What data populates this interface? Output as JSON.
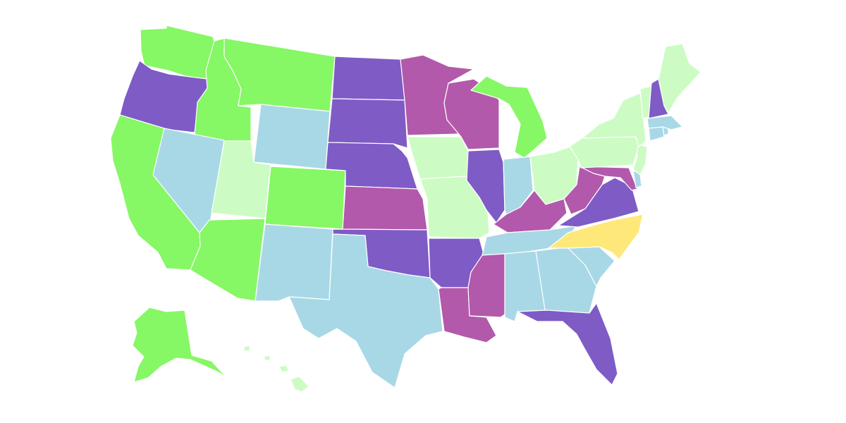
{
  "map": {
    "category_colors": {
      "bright_green": "#86f765",
      "light_green": "#ccfcc4",
      "light_blue": "#a8d8e6",
      "purple": "#7f5bc6",
      "magenta": "#b259ab",
      "yellow": "#fee87a"
    },
    "states": [
      {
        "id": "WA",
        "category": "bright_green"
      },
      {
        "id": "OR",
        "category": "purple"
      },
      {
        "id": "CA",
        "category": "bright_green"
      },
      {
        "id": "ID",
        "category": "bright_green"
      },
      {
        "id": "NV",
        "category": "light_blue"
      },
      {
        "id": "MT",
        "category": "bright_green"
      },
      {
        "id": "WY",
        "category": "light_blue"
      },
      {
        "id": "UT",
        "category": "light_green"
      },
      {
        "id": "AZ",
        "category": "bright_green"
      },
      {
        "id": "CO",
        "category": "bright_green"
      },
      {
        "id": "NM",
        "category": "light_blue"
      },
      {
        "id": "ND",
        "category": "purple"
      },
      {
        "id": "SD",
        "category": "purple"
      },
      {
        "id": "NE",
        "category": "purple"
      },
      {
        "id": "KS",
        "category": "magenta"
      },
      {
        "id": "OK",
        "category": "purple"
      },
      {
        "id": "TX",
        "category": "light_blue"
      },
      {
        "id": "MN",
        "category": "magenta"
      },
      {
        "id": "IA",
        "category": "light_green"
      },
      {
        "id": "MO",
        "category": "light_green"
      },
      {
        "id": "AR",
        "category": "purple"
      },
      {
        "id": "LA",
        "category": "magenta"
      },
      {
        "id": "WI",
        "category": "magenta"
      },
      {
        "id": "IL",
        "category": "purple"
      },
      {
        "id": "MI",
        "category": "bright_green"
      },
      {
        "id": "IN",
        "category": "light_blue"
      },
      {
        "id": "OH",
        "category": "light_green"
      },
      {
        "id": "KY",
        "category": "magenta"
      },
      {
        "id": "TN",
        "category": "light_blue"
      },
      {
        "id": "MS",
        "category": "magenta"
      },
      {
        "id": "AL",
        "category": "light_blue"
      },
      {
        "id": "GA",
        "category": "light_blue"
      },
      {
        "id": "FL",
        "category": "purple"
      },
      {
        "id": "SC",
        "category": "light_blue"
      },
      {
        "id": "NC",
        "category": "yellow"
      },
      {
        "id": "VA",
        "category": "purple"
      },
      {
        "id": "WV",
        "category": "magenta"
      },
      {
        "id": "MD",
        "category": "magenta"
      },
      {
        "id": "DE",
        "category": "light_blue"
      },
      {
        "id": "NJ",
        "category": "light_green"
      },
      {
        "id": "PA",
        "category": "light_green"
      },
      {
        "id": "NY",
        "category": "light_green"
      },
      {
        "id": "CT",
        "category": "light_blue"
      },
      {
        "id": "RI",
        "category": "light_blue"
      },
      {
        "id": "MA",
        "category": "light_blue"
      },
      {
        "id": "VT",
        "category": "light_green"
      },
      {
        "id": "NH",
        "category": "purple"
      },
      {
        "id": "ME",
        "category": "light_green"
      },
      {
        "id": "AK",
        "category": "bright_green"
      },
      {
        "id": "HI",
        "category": "light_green"
      }
    ]
  }
}
